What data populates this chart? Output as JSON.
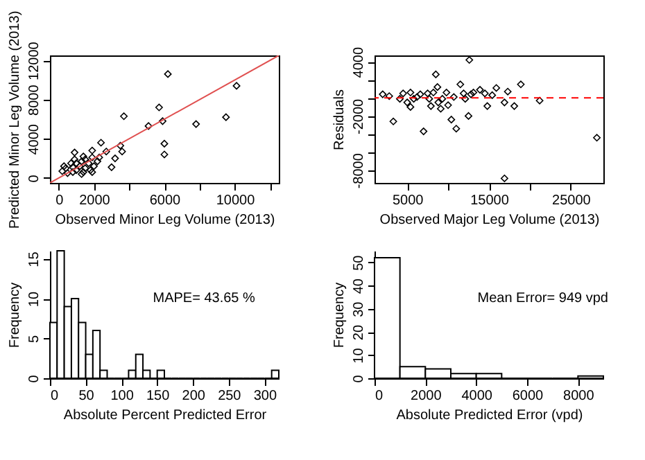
{
  "chart_data": [
    {
      "type": "scatter",
      "xlabel": "Observed Minor Leg Volume (2013)",
      "ylabel": "Predicted Minor Leg Volume (2013)",
      "xlim": [
        -500,
        12500
      ],
      "ylim": [
        -500,
        12500
      ],
      "xticks": [
        0,
        2000,
        {
          "value": 4000,
          "label": null
        },
        6000,
        {
          "value": 8000,
          "label": null
        },
        10000,
        {
          "value": 12000,
          "label": null
        }
      ],
      "yticks": [
        0,
        4000,
        8000,
        12000
      ],
      "series": [
        {
          "type": "scatter",
          "marker": "diamond",
          "color": "#000000",
          "x": [
            6200,
            10100,
            5700,
            3700,
            9500,
            5900,
            5100,
            7800,
            6000,
            6000,
            2400,
            3500,
            3600,
            2700,
            3200,
            3000,
            1900,
            900,
            1400,
            200,
            400,
            700,
            800,
            1000,
            1200,
            1300,
            1500,
            1700,
            1800,
            2000,
            2200,
            2300,
            900,
            500,
            1300,
            1900,
            300,
            800,
            1500,
            1900,
            1000,
            1400
          ],
          "values": [
            10600,
            9400,
            7200,
            6300,
            6200,
            5800,
            5300,
            5500,
            3500,
            2400,
            3600,
            3300,
            2700,
            2700,
            2000,
            1100,
            2800,
            2600,
            2200,
            700,
            1000,
            1500,
            600,
            800,
            1200,
            1700,
            1000,
            1500,
            800,
            1200,
            1700,
            2100,
            1900,
            500,
            400,
            600,
            1200,
            1100,
            1900,
            2100,
            1500,
            600
          ]
        },
        {
          "type": "line",
          "color": "#e05050",
          "x": [
            -500,
            12500
          ],
          "values": [
            -500,
            12500
          ]
        }
      ]
    },
    {
      "type": "scatter",
      "xlabel": "Observed Major Leg Volume (2013)",
      "ylabel": "Residuals",
      "xlim": [
        1000,
        29000
      ],
      "ylim": [
        -9400,
        4700
      ],
      "xticks": [
        5000,
        {
          "value": 10000,
          "label": null
        },
        15000,
        {
          "value": 20000,
          "label": null
        },
        25000
      ],
      "yticks": [
        4000,
        {
          "value": 2000,
          "label": null
        },
        {
          "value": 0,
          "label": null
        },
        -2000,
        {
          "value": -4000,
          "label": null
        },
        {
          "value": -6000,
          "label": null
        },
        -8000
      ],
      "ref_lines": [
        {
          "axis": "y",
          "value": 0,
          "color": "#ff0000",
          "line_style": "dashed"
        }
      ],
      "series": [
        {
          "type": "scatter",
          "marker": "diamond",
          "color": "#000000",
          "x": [
            2000,
            2800,
            3300,
            4100,
            4500,
            5000,
            5400,
            5400,
            5800,
            6200,
            6600,
            7000,
            7500,
            7700,
            7900,
            8200,
            8500,
            8700,
            8800,
            9100,
            9300,
            9800,
            10000,
            10400,
            10700,
            11000,
            11500,
            11900,
            12100,
            12500,
            12600,
            12800,
            13100,
            13900,
            14500,
            14800,
            15400,
            15900,
            16900,
            16900,
            17300,
            18100,
            18900,
            21200,
            28200
          ],
          "values": [
            400,
            200,
            -2600,
            -100,
            500,
            -500,
            -1000,
            600,
            -100,
            100,
            400,
            -3700,
            500,
            -100,
            -900,
            600,
            2600,
            1200,
            -500,
            -1200,
            -100,
            600,
            -800,
            -2400,
            100,
            -3400,
            1500,
            500,
            -100,
            -2000,
            4200,
            400,
            600,
            900,
            500,
            -900,
            300,
            1100,
            -8900,
            -500,
            700,
            -900,
            1500,
            -300,
            -4400
          ]
        }
      ]
    },
    {
      "type": "histogram",
      "xlabel": "Absolute Percent Predicted Error",
      "ylabel": "Frequency",
      "annotations": [
        "MAPE= 43.65 %"
      ],
      "xlim": [
        0,
        320
      ],
      "ylim": [
        0,
        16
      ],
      "xticks": [
        0,
        50,
        100,
        150,
        200,
        250,
        300
      ],
      "yticks": [
        0,
        5,
        10,
        15
      ],
      "bins": [
        0,
        10,
        20,
        30,
        40,
        50,
        60,
        70,
        80,
        90,
        100,
        110,
        120,
        130,
        140,
        150,
        160,
        170,
        180,
        190,
        200,
        210,
        220,
        230,
        240,
        250,
        260,
        270,
        280,
        290,
        300,
        310,
        320
      ],
      "values": [
        7,
        16,
        9,
        10,
        7,
        3,
        6,
        1,
        0,
        0,
        0,
        1,
        3,
        1,
        0,
        1,
        0,
        0,
        0,
        0,
        0,
        0,
        0,
        0,
        0,
        0,
        0,
        0,
        0,
        0,
        0,
        1
      ]
    },
    {
      "type": "histogram",
      "xlabel": "Absolute Predicted Error (vpd)",
      "ylabel": "Frequency",
      "annotations": [
        "Mean Error= 949 vpd"
      ],
      "xlim": [
        0,
        9000
      ],
      "ylim": [
        0,
        55
      ],
      "xticks": [
        0,
        2000,
        4000,
        6000,
        8000
      ],
      "yticks": [
        0,
        10,
        20,
        30,
        40,
        50
      ],
      "bins": [
        0,
        1000,
        2000,
        3000,
        4000,
        5000,
        6000,
        7000,
        8000,
        9000
      ],
      "values": [
        52,
        5,
        4,
        2,
        2,
        0,
        0,
        0,
        1
      ]
    }
  ]
}
